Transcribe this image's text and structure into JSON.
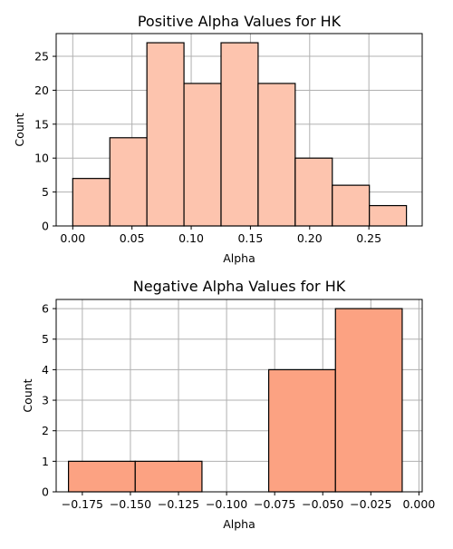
{
  "chart_data": [
    {
      "type": "bar",
      "title": "Positive Alpha Values for HK",
      "xlabel": "Alpha",
      "ylabel": "Count",
      "xlim": [
        -0.014,
        0.295
      ],
      "ylim": [
        0,
        28.35
      ],
      "xticks": [
        "0.00",
        "0.05",
        "0.10",
        "0.15",
        "0.20",
        "0.25"
      ],
      "xtick_values": [
        0,
        0.05,
        0.1,
        0.15,
        0.2,
        0.25
      ],
      "yticks": [
        "0",
        "5",
        "10",
        "15",
        "20",
        "25"
      ],
      "ytick_values": [
        0,
        5,
        10,
        15,
        20,
        25
      ],
      "bin_edges": [
        0.0,
        0.0313,
        0.0626,
        0.0939,
        0.1252,
        0.1565,
        0.1878,
        0.2191,
        0.2504,
        0.2817
      ],
      "values": [
        7,
        13,
        27,
        21,
        27,
        21,
        10,
        6,
        3
      ],
      "grid": true,
      "color": "#fdc4ae"
    },
    {
      "type": "bar",
      "title": "Negative Alpha Values for HK",
      "xlabel": "Alpha",
      "ylabel": "Count",
      "xlim": [
        -0.1886,
        0.0017
      ],
      "ylim": [
        0,
        6.3
      ],
      "xticks": [
        "−0.175",
        "−0.150",
        "−0.125",
        "−0.100",
        "−0.075",
        "−0.050",
        "−0.025",
        "0.000"
      ],
      "xtick_values": [
        -0.175,
        -0.15,
        -0.125,
        -0.1,
        -0.075,
        -0.05,
        -0.025,
        0
      ],
      "yticks": [
        "0",
        "1",
        "2",
        "3",
        "4",
        "5",
        "6"
      ],
      "ytick_values": [
        0,
        1,
        2,
        3,
        4,
        5,
        6
      ],
      "bin_edges": [
        -0.1822,
        -0.1475,
        -0.1128,
        -0.0781,
        -0.0434,
        -0.0087
      ],
      "values": [
        1,
        1,
        0,
        4,
        6
      ],
      "grid": true,
      "color": "#fca282"
    }
  ]
}
